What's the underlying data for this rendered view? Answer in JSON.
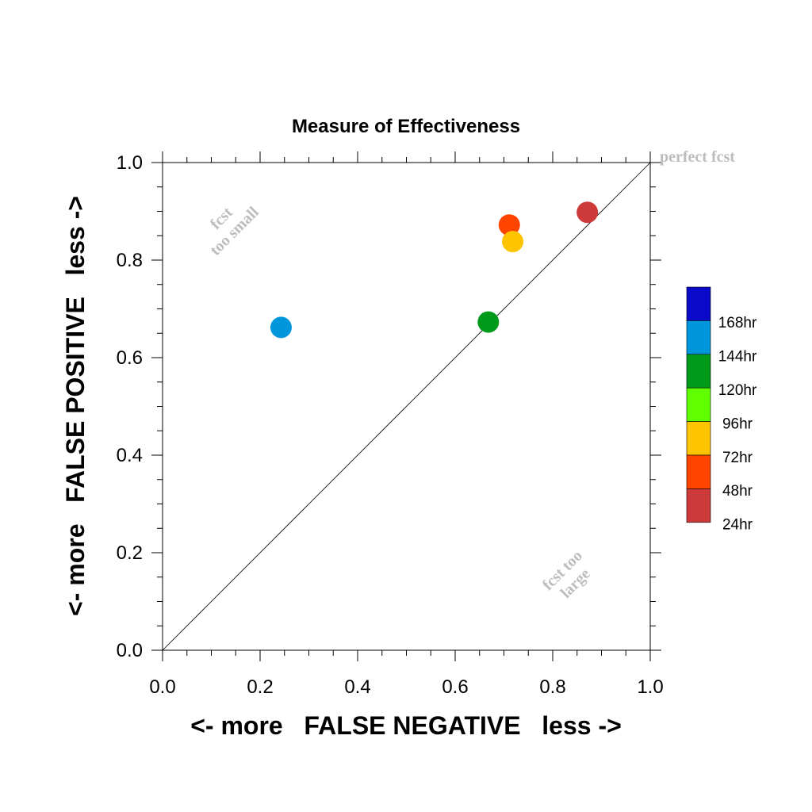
{
  "chart_data": {
    "type": "scatter",
    "title": "Measure of Effectiveness",
    "xlabel": "<- more   FALSE NEGATIVE   less ->",
    "ylabel": "<- more   FALSE POSITIVE   less ->",
    "xlim": [
      0.0,
      1.0
    ],
    "ylim": [
      0.0,
      1.0
    ],
    "xticks": [
      "0.0",
      "0.2",
      "0.4",
      "0.6",
      "0.8",
      "1.0"
    ],
    "yticks": [
      "0.0",
      "0.2",
      "0.4",
      "0.6",
      "0.8",
      "1.0"
    ],
    "grid": false,
    "diagonal_line": true,
    "annotations": {
      "perfect": "perfect fcst",
      "too_small_1": "fcst",
      "too_small_2": "too small",
      "too_large_1": "fcst too",
      "too_large_2": "large"
    },
    "legend": {
      "placement": "right",
      "entries": [
        {
          "label": "168hr",
          "color": "#0a0ac8"
        },
        {
          "label": "144hr",
          "color": "#0096dc"
        },
        {
          "label": "120hr",
          "color": "#009a1a"
        },
        {
          "label": "96hr",
          "color": "#60ff00"
        },
        {
          "label": "72hr",
          "color": "#ffc400"
        },
        {
          "label": "48hr",
          "color": "#ff4400"
        },
        {
          "label": "24hr",
          "color": "#cc3a3a"
        }
      ]
    },
    "series": [
      {
        "name": "144hr",
        "color": "#0096dc",
        "x": 0.243,
        "y": 0.662
      },
      {
        "name": "120hr",
        "color": "#009a1a",
        "x": 0.668,
        "y": 0.673
      },
      {
        "name": "48hr",
        "color": "#ff4400",
        "x": 0.711,
        "y": 0.872
      },
      {
        "name": "72hr",
        "color": "#ffc400",
        "x": 0.718,
        "y": 0.838
      },
      {
        "name": "24hr",
        "color": "#cc3a3a",
        "x": 0.871,
        "y": 0.898
      }
    ]
  }
}
